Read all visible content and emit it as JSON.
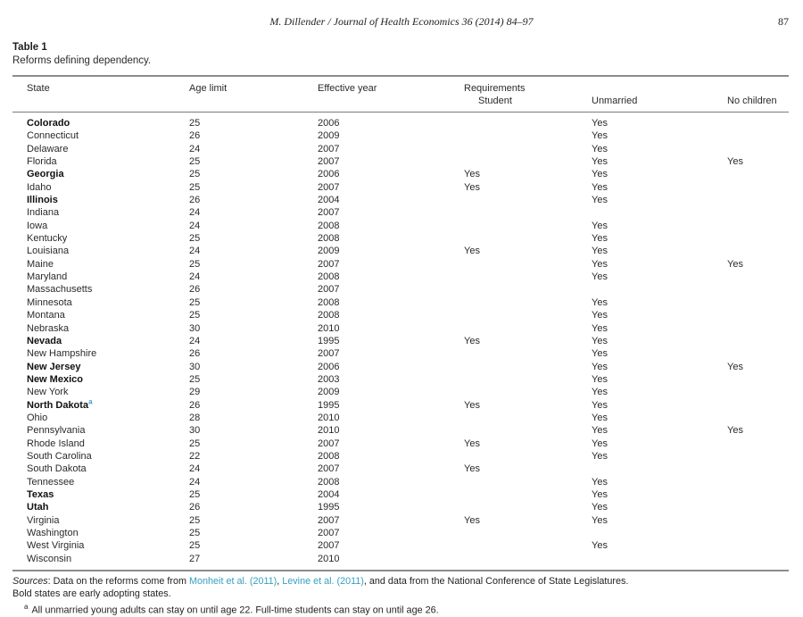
{
  "page_header": {
    "running_head": "M. Dillender / Journal of Health Economics 36 (2014) 84–97",
    "page_number": "87"
  },
  "table": {
    "label": "Table 1",
    "caption": "Reforms defining dependency.",
    "columns": {
      "state": "State",
      "age_limit": "Age limit",
      "effective_year": "Effective year",
      "requirements_group": "Requirements",
      "student": "Student",
      "unmarried": "Unmarried",
      "no_children": "No children"
    },
    "rows": [
      {
        "state": "Colorado",
        "bold": true,
        "footnote_marker": "",
        "age_limit": "25",
        "effective_year": "2006",
        "student": "",
        "unmarried": "Yes",
        "no_children": ""
      },
      {
        "state": "Connecticut",
        "bold": false,
        "footnote_marker": "",
        "age_limit": "26",
        "effective_year": "2009",
        "student": "",
        "unmarried": "Yes",
        "no_children": ""
      },
      {
        "state": "Delaware",
        "bold": false,
        "footnote_marker": "",
        "age_limit": "24",
        "effective_year": "2007",
        "student": "",
        "unmarried": "Yes",
        "no_children": ""
      },
      {
        "state": "Florida",
        "bold": false,
        "footnote_marker": "",
        "age_limit": "25",
        "effective_year": "2007",
        "student": "",
        "unmarried": "Yes",
        "no_children": "Yes"
      },
      {
        "state": "Georgia",
        "bold": true,
        "footnote_marker": "",
        "age_limit": "25",
        "effective_year": "2006",
        "student": "Yes",
        "unmarried": "Yes",
        "no_children": ""
      },
      {
        "state": "Idaho",
        "bold": false,
        "footnote_marker": "",
        "age_limit": "25",
        "effective_year": "2007",
        "student": "Yes",
        "unmarried": "Yes",
        "no_children": ""
      },
      {
        "state": "Illinois",
        "bold": true,
        "footnote_marker": "",
        "age_limit": "26",
        "effective_year": "2004",
        "student": "",
        "unmarried": "Yes",
        "no_children": ""
      },
      {
        "state": "Indiana",
        "bold": false,
        "footnote_marker": "",
        "age_limit": "24",
        "effective_year": "2007",
        "student": "",
        "unmarried": "",
        "no_children": ""
      },
      {
        "state": "Iowa",
        "bold": false,
        "footnote_marker": "",
        "age_limit": "24",
        "effective_year": "2008",
        "student": "",
        "unmarried": "Yes",
        "no_children": ""
      },
      {
        "state": "Kentucky",
        "bold": false,
        "footnote_marker": "",
        "age_limit": "25",
        "effective_year": "2008",
        "student": "",
        "unmarried": "Yes",
        "no_children": ""
      },
      {
        "state": "Louisiana",
        "bold": false,
        "footnote_marker": "",
        "age_limit": "24",
        "effective_year": "2009",
        "student": "Yes",
        "unmarried": "Yes",
        "no_children": ""
      },
      {
        "state": "Maine",
        "bold": false,
        "footnote_marker": "",
        "age_limit": "25",
        "effective_year": "2007",
        "student": "",
        "unmarried": "Yes",
        "no_children": "Yes"
      },
      {
        "state": "Maryland",
        "bold": false,
        "footnote_marker": "",
        "age_limit": "24",
        "effective_year": "2008",
        "student": "",
        "unmarried": "Yes",
        "no_children": ""
      },
      {
        "state": "Massachusetts",
        "bold": false,
        "footnote_marker": "",
        "age_limit": "26",
        "effective_year": "2007",
        "student": "",
        "unmarried": "",
        "no_children": ""
      },
      {
        "state": "Minnesota",
        "bold": false,
        "footnote_marker": "",
        "age_limit": "25",
        "effective_year": "2008",
        "student": "",
        "unmarried": "Yes",
        "no_children": ""
      },
      {
        "state": "Montana",
        "bold": false,
        "footnote_marker": "",
        "age_limit": "25",
        "effective_year": "2008",
        "student": "",
        "unmarried": "Yes",
        "no_children": ""
      },
      {
        "state": "Nebraska",
        "bold": false,
        "footnote_marker": "",
        "age_limit": "30",
        "effective_year": "2010",
        "student": "",
        "unmarried": "Yes",
        "no_children": ""
      },
      {
        "state": "Nevada",
        "bold": true,
        "footnote_marker": "",
        "age_limit": "24",
        "effective_year": "1995",
        "student": "Yes",
        "unmarried": "Yes",
        "no_children": ""
      },
      {
        "state": "New Hampshire",
        "bold": false,
        "footnote_marker": "",
        "age_limit": "26",
        "effective_year": "2007",
        "student": "",
        "unmarried": "Yes",
        "no_children": ""
      },
      {
        "state": "New Jersey",
        "bold": true,
        "footnote_marker": "",
        "age_limit": "30",
        "effective_year": "2006",
        "student": "",
        "unmarried": "Yes",
        "no_children": "Yes"
      },
      {
        "state": "New Mexico",
        "bold": true,
        "footnote_marker": "",
        "age_limit": "25",
        "effective_year": "2003",
        "student": "",
        "unmarried": "Yes",
        "no_children": ""
      },
      {
        "state": "New York",
        "bold": false,
        "footnote_marker": "",
        "age_limit": "29",
        "effective_year": "2009",
        "student": "",
        "unmarried": "Yes",
        "no_children": ""
      },
      {
        "state": "North Dakota",
        "bold": true,
        "footnote_marker": "a",
        "age_limit": "26",
        "effective_year": "1995",
        "student": "Yes",
        "unmarried": "Yes",
        "no_children": ""
      },
      {
        "state": "Ohio",
        "bold": false,
        "footnote_marker": "",
        "age_limit": "28",
        "effective_year": "2010",
        "student": "",
        "unmarried": "Yes",
        "no_children": ""
      },
      {
        "state": "Pennsylvania",
        "bold": false,
        "footnote_marker": "",
        "age_limit": "30",
        "effective_year": "2010",
        "student": "",
        "unmarried": "Yes",
        "no_children": "Yes"
      },
      {
        "state": "Rhode Island",
        "bold": false,
        "footnote_marker": "",
        "age_limit": "25",
        "effective_year": "2007",
        "student": "Yes",
        "unmarried": "Yes",
        "no_children": ""
      },
      {
        "state": "South Carolina",
        "bold": false,
        "footnote_marker": "",
        "age_limit": "22",
        "effective_year": "2008",
        "student": "",
        "unmarried": "Yes",
        "no_children": ""
      },
      {
        "state": "South Dakota",
        "bold": false,
        "footnote_marker": "",
        "age_limit": "24",
        "effective_year": "2007",
        "student": "Yes",
        "unmarried": "",
        "no_children": ""
      },
      {
        "state": "Tennessee",
        "bold": false,
        "footnote_marker": "",
        "age_limit": "24",
        "effective_year": "2008",
        "student": "",
        "unmarried": "Yes",
        "no_children": ""
      },
      {
        "state": "Texas",
        "bold": true,
        "footnote_marker": "",
        "age_limit": "25",
        "effective_year": "2004",
        "student": "",
        "unmarried": "Yes",
        "no_children": ""
      },
      {
        "state": "Utah",
        "bold": true,
        "footnote_marker": "",
        "age_limit": "26",
        "effective_year": "1995",
        "student": "",
        "unmarried": "Yes",
        "no_children": ""
      },
      {
        "state": "Virginia",
        "bold": false,
        "footnote_marker": "",
        "age_limit": "25",
        "effective_year": "2007",
        "student": "Yes",
        "unmarried": "Yes",
        "no_children": ""
      },
      {
        "state": "Washington",
        "bold": false,
        "footnote_marker": "",
        "age_limit": "25",
        "effective_year": "2007",
        "student": "",
        "unmarried": "",
        "no_children": ""
      },
      {
        "state": "West Virginia",
        "bold": false,
        "footnote_marker": "",
        "age_limit": "25",
        "effective_year": "2007",
        "student": "",
        "unmarried": "Yes",
        "no_children": ""
      },
      {
        "state": "Wisconsin",
        "bold": false,
        "footnote_marker": "",
        "age_limit": "27",
        "effective_year": "2010",
        "student": "",
        "unmarried": "",
        "no_children": ""
      }
    ]
  },
  "footnotes": {
    "sources_label": "Sources",
    "sources_text_1": ": Data on the reforms come from ",
    "citation_link_1": "Monheit et al. (2011)",
    "sources_sep": ", ",
    "citation_link_2": "Levine et al. (2011)",
    "sources_text_2": ", and data from the National Conference of State Legislatures.",
    "bold_note": "Bold states are early adopting states.",
    "footnote_a_marker": "a",
    "footnote_a_text": "All unmarried young adults can stay on until age 22. Full-time students can stay on until age 26."
  },
  "colors": {
    "link": "#35a0c0",
    "text": "#1d1d1d",
    "rule": "#8c8c8c"
  }
}
